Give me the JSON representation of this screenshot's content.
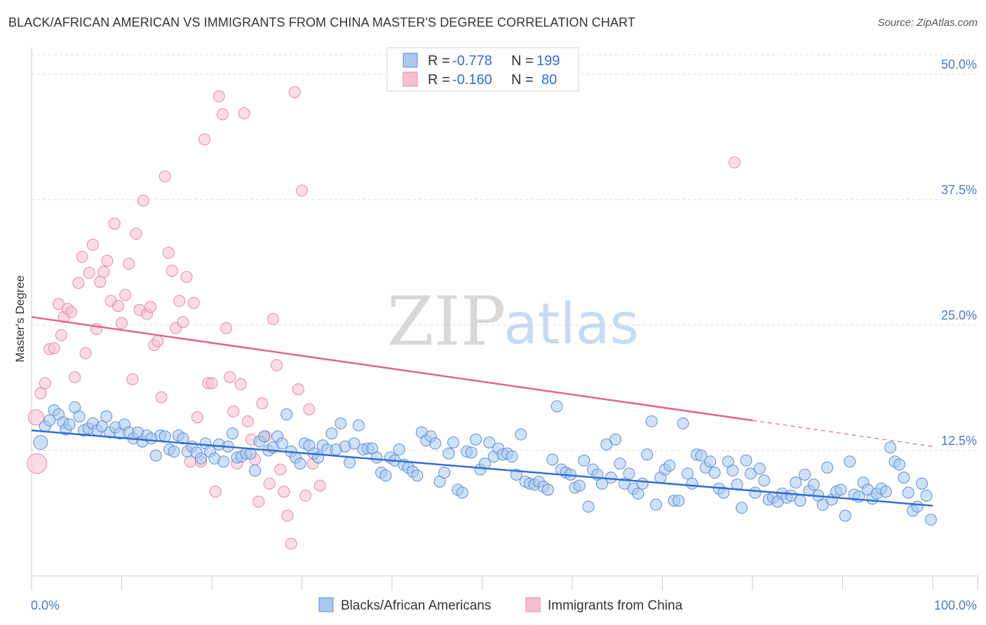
{
  "header": {
    "title": "BLACK/AFRICAN AMERICAN VS IMMIGRANTS FROM CHINA MASTER'S DEGREE CORRELATION CHART",
    "source": "Source: ZipAtlas.com"
  },
  "watermark": {
    "part1": "ZIP",
    "part2": "atlas"
  },
  "legend": {
    "series": [
      {
        "r_label": "R =",
        "r_value": "-0.778",
        "n_label": "N =",
        "n_value": "199"
      },
      {
        "r_label": "R =",
        "r_value": "-0.160",
        "n_label": "N =",
        "n_value": "80"
      }
    ]
  },
  "bottom_legend": [
    "Blacks/African Americans",
    "Immigrants from China"
  ],
  "colors": {
    "blue_fill": "#a9c8ef",
    "blue_stroke": "#5b8fd6",
    "blue_line": "#2f6fd0",
    "pink_fill": "#f6bfd0",
    "pink_stroke": "#e889a7",
    "pink_line": "#e0668f",
    "grid": "#dddddd",
    "axis_text": "#4a7cc4"
  },
  "chart_data": {
    "type": "scatter",
    "title": "BLACK/AFRICAN AMERICAN VS IMMIGRANTS FROM CHINA MASTER'S DEGREE CORRELATION CHART",
    "xlabel": "",
    "ylabel": "Master's Degree",
    "xlim": [
      0,
      100
    ],
    "ylim": [
      0,
      52.5
    ],
    "x_ticks": [
      "0.0%",
      "100.0%"
    ],
    "y_ticks": [
      {
        "value": 12.5,
        "label": "12.5%"
      },
      {
        "value": 25.0,
        "label": "25.0%"
      },
      {
        "value": 37.5,
        "label": "37.5%"
      },
      {
        "value": 50.0,
        "label": "50.0%"
      }
    ],
    "grid": true,
    "legend_position": "top-center",
    "series": [
      {
        "name": "Blacks/African Americans",
        "R": -0.778,
        "N": 199,
        "trend": {
          "x": [
            0,
            100
          ],
          "y": [
            14.5,
            7.0
          ]
        },
        "points": [
          [
            1,
            13.3
          ],
          [
            1.5,
            14.9
          ],
          [
            2,
            15.5
          ],
          [
            2.5,
            16.5
          ],
          [
            3,
            16.1
          ],
          [
            3.5,
            15.3
          ],
          [
            3.8,
            14.6
          ],
          [
            4.2,
            15.1
          ],
          [
            4.8,
            16.8
          ],
          [
            5.3,
            15.9
          ],
          [
            5.8,
            14.5
          ],
          [
            6.3,
            14.7
          ],
          [
            6.8,
            15.2
          ],
          [
            7.3,
            14.5
          ],
          [
            7.8,
            14.9
          ],
          [
            8.3,
            15.9
          ],
          [
            8.7,
            14.3
          ],
          [
            9.3,
            14.8
          ],
          [
            9.8,
            14.2
          ],
          [
            10.3,
            15.1
          ],
          [
            10.8,
            14.3
          ],
          [
            11.3,
            13.7
          ],
          [
            11.8,
            14.3
          ],
          [
            12.3,
            13.4
          ],
          [
            12.8,
            14.0
          ],
          [
            13.3,
            13.7
          ],
          [
            13.8,
            12.0
          ],
          [
            14.3,
            14.0
          ],
          [
            14.8,
            13.9
          ],
          [
            15.3,
            12.6
          ],
          [
            15.8,
            12.4
          ],
          [
            16.3,
            14.0
          ],
          [
            16.8,
            13.7
          ],
          [
            17.3,
            12.4
          ],
          [
            17.8,
            12.9
          ],
          [
            18.3,
            12.3
          ],
          [
            18.8,
            11.7
          ],
          [
            19.3,
            13.2
          ],
          [
            19.8,
            12.4
          ],
          [
            20.3,
            11.7
          ],
          [
            20.8,
            13.1
          ],
          [
            21.3,
            11.4
          ],
          [
            21.8,
            12.9
          ],
          [
            22.3,
            14.2
          ],
          [
            22.8,
            11.8
          ],
          [
            23.3,
            11.9
          ],
          [
            23.8,
            12.2
          ],
          [
            24.3,
            12.2
          ],
          [
            24.8,
            10.5
          ],
          [
            25.3,
            13.4
          ],
          [
            25.8,
            13.9
          ],
          [
            26.3,
            12.5
          ],
          [
            26.8,
            12.8
          ],
          [
            27.3,
            13.9
          ],
          [
            27.8,
            13.2
          ],
          [
            28.3,
            16.1
          ],
          [
            28.8,
            12.4
          ],
          [
            29.3,
            11.8
          ],
          [
            29.8,
            11.2
          ],
          [
            30.3,
            13.2
          ],
          [
            30.8,
            13.0
          ],
          [
            31.3,
            12.2
          ],
          [
            31.8,
            11.8
          ],
          [
            32.3,
            13.0
          ],
          [
            32.8,
            12.6
          ],
          [
            33.3,
            14.2
          ],
          [
            33.8,
            12.6
          ],
          [
            34.3,
            15.2
          ],
          [
            34.8,
            12.9
          ],
          [
            35.3,
            11.3
          ],
          [
            35.8,
            13.2
          ],
          [
            36.3,
            15.0
          ],
          [
            36.8,
            12.6
          ],
          [
            37.3,
            12.7
          ],
          [
            37.8,
            12.7
          ],
          [
            38.3,
            11.8
          ],
          [
            38.8,
            10.3
          ],
          [
            39.3,
            10.0
          ],
          [
            39.8,
            11.8
          ],
          [
            40.3,
            11.5
          ],
          [
            40.8,
            12.6
          ],
          [
            41.3,
            11.1
          ],
          [
            41.8,
            10.8
          ],
          [
            42.3,
            10.4
          ],
          [
            42.8,
            10.0
          ],
          [
            43.3,
            14.3
          ],
          [
            43.8,
            13.5
          ],
          [
            44.3,
            13.9
          ],
          [
            44.8,
            13.2
          ],
          [
            45.3,
            9.4
          ],
          [
            45.8,
            10.3
          ],
          [
            46.3,
            12.2
          ],
          [
            46.8,
            13.3
          ],
          [
            47.3,
            8.6
          ],
          [
            47.8,
            8.3
          ],
          [
            48.3,
            12.4
          ],
          [
            48.8,
            12.3
          ],
          [
            49.3,
            13.6
          ],
          [
            49.8,
            10.6
          ],
          [
            50.3,
            11.2
          ],
          [
            50.8,
            13.3
          ],
          [
            51.3,
            11.9
          ],
          [
            51.8,
            12.7
          ],
          [
            52.3,
            12.1
          ],
          [
            52.8,
            12.2
          ],
          [
            53.3,
            11.9
          ],
          [
            53.8,
            10.1
          ],
          [
            54.3,
            14.1
          ],
          [
            54.8,
            9.4
          ],
          [
            55.3,
            9.2
          ],
          [
            55.8,
            9.1
          ],
          [
            56.3,
            9.4
          ],
          [
            56.8,
            8.9
          ],
          [
            57.3,
            8.6
          ],
          [
            57.8,
            11.6
          ],
          [
            58.3,
            16.9
          ],
          [
            58.8,
            10.6
          ],
          [
            59.3,
            10.3
          ],
          [
            59.8,
            10.1
          ],
          [
            60.3,
            8.8
          ],
          [
            60.8,
            9.0
          ],
          [
            61.3,
            11.5
          ],
          [
            61.8,
            6.9
          ],
          [
            62.3,
            10.6
          ],
          [
            62.8,
            10.1
          ],
          [
            63.3,
            9.2
          ],
          [
            63.8,
            13.1
          ],
          [
            64.3,
            9.8
          ],
          [
            64.8,
            13.6
          ],
          [
            65.3,
            11.2
          ],
          [
            65.8,
            9.2
          ],
          [
            66.3,
            10.2
          ],
          [
            66.8,
            8.7
          ],
          [
            67.3,
            8.2
          ],
          [
            67.8,
            9.2
          ],
          [
            68.3,
            12.1
          ],
          [
            68.8,
            15.4
          ],
          [
            69.3,
            7.1
          ],
          [
            69.8,
            9.8
          ],
          [
            70.3,
            10.6
          ],
          [
            70.8,
            11.0
          ],
          [
            71.3,
            7.5
          ],
          [
            71.8,
            7.5
          ],
          [
            72.3,
            15.2
          ],
          [
            72.8,
            10.2
          ],
          [
            73.3,
            9.2
          ],
          [
            73.8,
            12.1
          ],
          [
            74.3,
            12.0
          ],
          [
            74.8,
            10.8
          ],
          [
            75.3,
            11.4
          ],
          [
            75.8,
            10.3
          ],
          [
            76.3,
            8.7
          ],
          [
            76.8,
            8.3
          ],
          [
            77.3,
            11.4
          ],
          [
            77.8,
            10.5
          ],
          [
            78.3,
            9.1
          ],
          [
            78.8,
            6.8
          ],
          [
            79.3,
            11.5
          ],
          [
            79.8,
            10.2
          ],
          [
            80.3,
            8.3
          ],
          [
            80.8,
            10.7
          ],
          [
            81.3,
            9.5
          ],
          [
            81.8,
            7.6
          ],
          [
            82.3,
            7.8
          ],
          [
            82.8,
            7.4
          ],
          [
            83.3,
            8.2
          ],
          [
            83.8,
            7.8
          ],
          [
            84.3,
            8.0
          ],
          [
            84.8,
            9.3
          ],
          [
            85.3,
            7.5
          ],
          [
            85.8,
            10.1
          ],
          [
            86.3,
            8.5
          ],
          [
            86.8,
            9.1
          ],
          [
            87.3,
            8.0
          ],
          [
            87.8,
            7.1
          ],
          [
            88.3,
            10.8
          ],
          [
            88.8,
            7.6
          ],
          [
            89.3,
            8.4
          ],
          [
            89.8,
            8.6
          ],
          [
            90.3,
            6.0
          ],
          [
            90.8,
            11.4
          ],
          [
            91.3,
            8.1
          ],
          [
            91.8,
            7.9
          ],
          [
            92.3,
            9.3
          ],
          [
            92.8,
            8.6
          ],
          [
            93.3,
            7.7
          ],
          [
            93.8,
            8.2
          ],
          [
            94.3,
            8.7
          ],
          [
            94.8,
            8.4
          ],
          [
            95.3,
            12.8
          ],
          [
            95.8,
            11.4
          ],
          [
            96.3,
            11.1
          ],
          [
            96.8,
            9.8
          ],
          [
            97.3,
            8.3
          ],
          [
            97.8,
            6.5
          ],
          [
            98.3,
            6.9
          ],
          [
            98.8,
            9.2
          ],
          [
            99.3,
            8.0
          ],
          [
            99.8,
            5.6
          ]
        ]
      },
      {
        "name": "Immigrants from China",
        "R": -0.16,
        "N": 80,
        "trend": {
          "x": [
            0,
            80
          ],
          "y": [
            25.8,
            15.5
          ],
          "dashed_extension": {
            "x": [
              80,
              100
            ],
            "y": [
              15.5,
              12.9
            ]
          }
        },
        "points": [
          [
            0.5,
            15.8
          ],
          [
            0.6,
            11.2
          ],
          [
            1.0,
            18.2
          ],
          [
            1.5,
            19.2
          ],
          [
            2.0,
            22.6
          ],
          [
            2.5,
            22.7
          ],
          [
            3.0,
            27.1
          ],
          [
            3.3,
            24.0
          ],
          [
            3.6,
            25.8
          ],
          [
            4.0,
            26.6
          ],
          [
            4.4,
            26.3
          ],
          [
            4.8,
            19.8
          ],
          [
            5.2,
            29.2
          ],
          [
            5.6,
            31.8
          ],
          [
            6.0,
            22.2
          ],
          [
            6.4,
            30.2
          ],
          [
            6.8,
            33.0
          ],
          [
            7.2,
            24.6
          ],
          [
            7.6,
            29.3
          ],
          [
            8.0,
            30.3
          ],
          [
            8.4,
            31.4
          ],
          [
            8.8,
            27.4
          ],
          [
            9.2,
            35.1
          ],
          [
            9.6,
            26.9
          ],
          [
            10.0,
            25.2
          ],
          [
            10.4,
            28.0
          ],
          [
            10.8,
            31.1
          ],
          [
            11.2,
            19.6
          ],
          [
            11.6,
            34.1
          ],
          [
            12.0,
            26.5
          ],
          [
            12.4,
            37.4
          ],
          [
            12.8,
            26.1
          ],
          [
            13.2,
            26.8
          ],
          [
            13.6,
            23.0
          ],
          [
            14.0,
            23.4
          ],
          [
            14.4,
            17.8
          ],
          [
            14.8,
            39.8
          ],
          [
            15.2,
            32.2
          ],
          [
            15.6,
            30.4
          ],
          [
            16.0,
            24.7
          ],
          [
            16.4,
            27.4
          ],
          [
            16.8,
            25.3
          ],
          [
            17.2,
            29.8
          ],
          [
            17.6,
            11.4
          ],
          [
            18.0,
            27.2
          ],
          [
            18.4,
            15.8
          ],
          [
            18.8,
            11.4
          ],
          [
            19.2,
            43.5
          ],
          [
            19.6,
            19.2
          ],
          [
            20.0,
            19.2
          ],
          [
            20.4,
            8.4
          ],
          [
            20.8,
            47.8
          ],
          [
            21.2,
            46.0
          ],
          [
            21.6,
            24.7
          ],
          [
            22.0,
            19.8
          ],
          [
            22.4,
            16.4
          ],
          [
            22.8,
            11.2
          ],
          [
            23.2,
            19.1
          ],
          [
            23.6,
            46.1
          ],
          [
            24.0,
            15.4
          ],
          [
            24.4,
            13.6
          ],
          [
            24.8,
            11.6
          ],
          [
            25.2,
            7.4
          ],
          [
            25.6,
            17.2
          ],
          [
            26.0,
            13.9
          ],
          [
            26.4,
            9.2
          ],
          [
            26.8,
            25.6
          ],
          [
            27.2,
            21.0
          ],
          [
            27.6,
            10.6
          ],
          [
            28.0,
            8.4
          ],
          [
            28.4,
            6.0
          ],
          [
            28.8,
            3.2
          ],
          [
            29.2,
            48.2
          ],
          [
            29.6,
            18.6
          ],
          [
            30.0,
            38.4
          ],
          [
            30.4,
            8.0
          ],
          [
            30.8,
            16.6
          ],
          [
            31.2,
            11.2
          ],
          [
            32.0,
            9.0
          ],
          [
            78.0,
            41.2
          ]
        ]
      }
    ]
  }
}
